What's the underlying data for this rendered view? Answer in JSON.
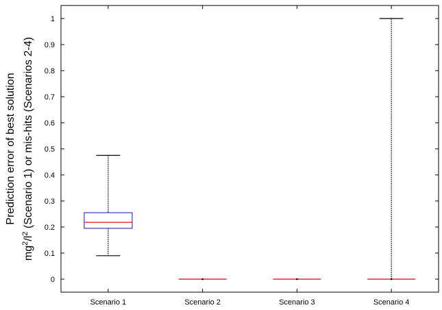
{
  "chart_data": {
    "type": "boxplot",
    "categories": [
      "Scenario 1",
      "Scenario 2",
      "Scenario 3",
      "Scenario 4"
    ],
    "ylabel_line1": "Prediction error of best solution",
    "ylabel_line2_parts": [
      "mg",
      "2",
      "/l",
      "2",
      " (Scenario 1) or mis-hits (Scenarios 2-4)"
    ],
    "ylim": [
      -0.05,
      1.05
    ],
    "yticks": [
      0,
      0.1,
      0.2,
      0.3,
      0.4,
      0.5,
      0.6,
      0.7,
      0.8,
      0.9,
      1
    ],
    "ytick_labels": [
      "0",
      "0.1",
      "0.2",
      "0.3",
      "0.4",
      "0.5",
      "0.6",
      "0.7",
      "0.8",
      "0.9",
      "1"
    ],
    "boxes": [
      {
        "category": "Scenario 1",
        "whisker_low": 0.09,
        "q1": 0.195,
        "median": 0.218,
        "q3": 0.255,
        "whisker_high": 0.475
      },
      {
        "category": "Scenario 2",
        "whisker_low": 0,
        "q1": 0,
        "median": 0,
        "q3": 0,
        "whisker_high": 0
      },
      {
        "category": "Scenario 3",
        "whisker_low": 0,
        "q1": 0,
        "median": 0,
        "q3": 0,
        "whisker_high": 0
      },
      {
        "category": "Scenario 4",
        "whisker_low": 0,
        "q1": 0,
        "median": 0,
        "q3": 0,
        "whisker_high": 1
      }
    ],
    "colors": {
      "box": "#3b3bb0",
      "median": "#e0282c",
      "whisker": "#000000"
    },
    "grid": false,
    "legend": "none"
  }
}
